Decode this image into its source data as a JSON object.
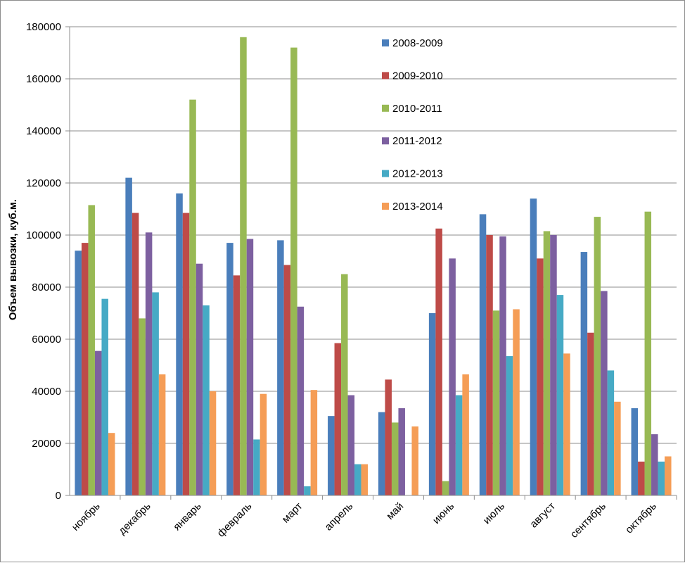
{
  "chart_data": {
    "type": "bar",
    "title": "",
    "xlabel": "",
    "ylabel": "Объем вывозки, куб.м.",
    "ylim": [
      0,
      180000
    ],
    "yticks": [
      0,
      20000,
      40000,
      60000,
      80000,
      100000,
      120000,
      140000,
      160000,
      180000
    ],
    "ytick_labels": [
      "0",
      "20000",
      "40000",
      "60000",
      "80000",
      "100000",
      "120000",
      "140000",
      "160000",
      "180000"
    ],
    "grid": true,
    "legend_position": "top-right inside plot",
    "categories": [
      "ноябрь",
      "декабрь",
      "январь",
      "февраль",
      "март",
      "апрель",
      "май",
      "июнь",
      "июль",
      "август",
      "сентябрь",
      "октябрь"
    ],
    "series": [
      {
        "name": "2008-2009",
        "color": "#4a7ebb",
        "values": [
          94000,
          122000,
          116000,
          97000,
          98000,
          30500,
          32000,
          70000,
          108000,
          114000,
          93500,
          33500
        ]
      },
      {
        "name": "2009-2010",
        "color": "#be4b48",
        "values": [
          97000,
          108500,
          108500,
          84500,
          88500,
          58500,
          44500,
          102500,
          100000,
          91000,
          62500,
          13000
        ]
      },
      {
        "name": "2010-2011",
        "color": "#98b954",
        "values": [
          111500,
          68000,
          152000,
          176000,
          172000,
          85000,
          28000,
          5500,
          71000,
          101500,
          107000,
          109000
        ]
      },
      {
        "name": "2011-2012",
        "color": "#7d60a0",
        "values": [
          55500,
          101000,
          89000,
          98500,
          72500,
          38500,
          33500,
          91000,
          99500,
          100000,
          78500,
          23500
        ]
      },
      {
        "name": "2012-2013",
        "color": "#46aac5",
        "values": [
          75500,
          78000,
          73000,
          21500,
          3500,
          12000,
          0,
          38500,
          53500,
          77000,
          48000,
          13000
        ]
      },
      {
        "name": "2013-2014",
        "color": "#f59d56",
        "values": [
          24000,
          46500,
          40000,
          39000,
          40500,
          12000,
          26500,
          46500,
          71500,
          54500,
          36000,
          15000
        ]
      }
    ]
  }
}
